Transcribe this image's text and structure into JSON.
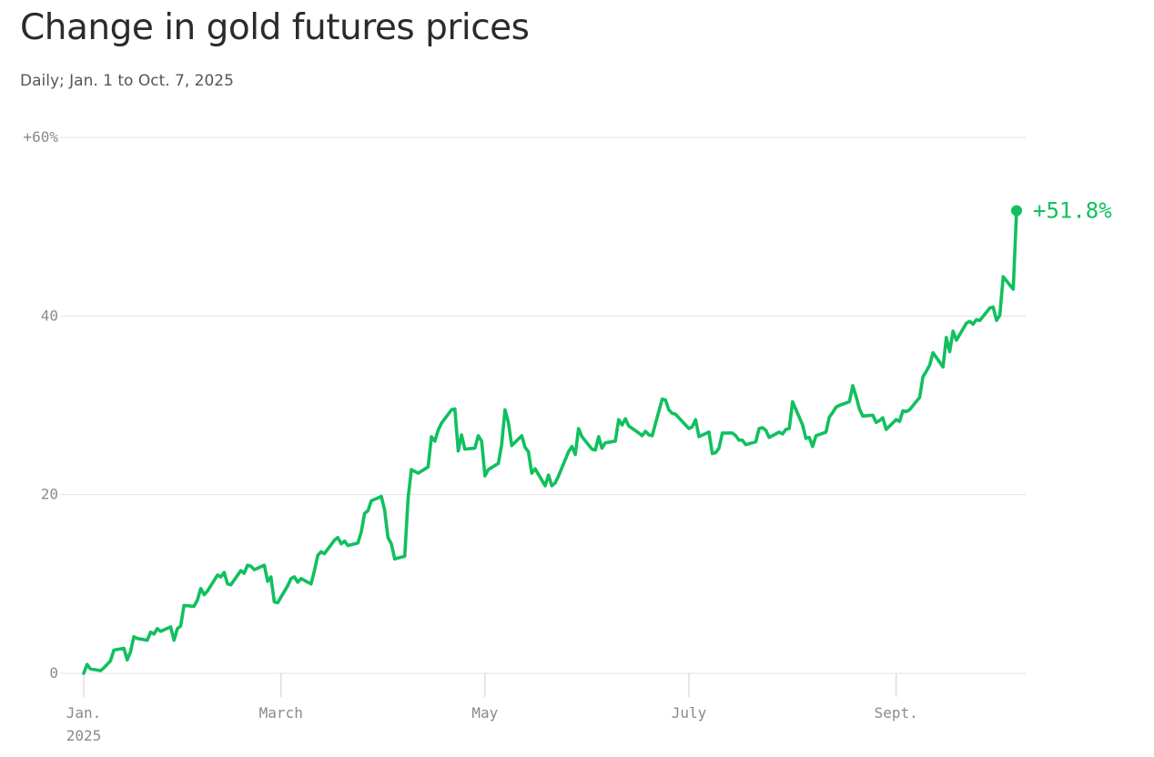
{
  "header": {
    "title": "Change in gold futures prices",
    "subtitle": "Daily; Jan. 1 to Oct. 7, 2025"
  },
  "colors": {
    "line": "#10c05e",
    "grid": "#e3e3e3",
    "axis_text": "#8a8a8a",
    "title": "#2b2b2b"
  },
  "chart_data": {
    "type": "line",
    "title": "Change in gold futures prices",
    "subtitle": "Daily; Jan. 1 to Oct. 7, 2025",
    "xlabel": "",
    "ylabel": "",
    "ylim": [
      0,
      60
    ],
    "xlim": [
      "2025-01-01",
      "2025-10-07"
    ],
    "grid": true,
    "y_ticks": [
      {
        "value": 0,
        "label": "0"
      },
      {
        "value": 20,
        "label": "20"
      },
      {
        "value": 40,
        "label": "40"
      },
      {
        "value": 60,
        "label": "+60%"
      }
    ],
    "x_ticks": [
      {
        "date": "2025-01-01",
        "label": "Jan.",
        "sublabel": "2025"
      },
      {
        "date": "2025-03-01",
        "label": "March",
        "sublabel": ""
      },
      {
        "date": "2025-05-01",
        "label": "May",
        "sublabel": ""
      },
      {
        "date": "2025-07-01",
        "label": "July",
        "sublabel": ""
      },
      {
        "date": "2025-09-01",
        "label": "Sept.",
        "sublabel": ""
      }
    ],
    "end_label": "+51.8%",
    "series": [
      {
        "points": [
          [
            "2025-01-01",
            0.0
          ],
          [
            "2025-01-02",
            1.0
          ],
          [
            "2025-01-03",
            0.5
          ],
          [
            "2025-01-06",
            0.3
          ],
          [
            "2025-01-07",
            0.6
          ],
          [
            "2025-01-08",
            1.0
          ],
          [
            "2025-01-09",
            1.4
          ],
          [
            "2025-01-10",
            2.6
          ],
          [
            "2025-01-13",
            2.8
          ],
          [
            "2025-01-14",
            1.5
          ],
          [
            "2025-01-15",
            2.4
          ],
          [
            "2025-01-16",
            4.1
          ],
          [
            "2025-01-17",
            3.9
          ],
          [
            "2025-01-20",
            3.7
          ],
          [
            "2025-01-21",
            4.6
          ],
          [
            "2025-01-22",
            4.4
          ],
          [
            "2025-01-23",
            5.0
          ],
          [
            "2025-01-24",
            4.7
          ],
          [
            "2025-01-27",
            5.2
          ],
          [
            "2025-01-28",
            3.7
          ],
          [
            "2025-01-29",
            5.0
          ],
          [
            "2025-01-30",
            5.3
          ],
          [
            "2025-01-31",
            7.6
          ],
          [
            "2025-02-03",
            7.5
          ],
          [
            "2025-02-04",
            8.2
          ],
          [
            "2025-02-05",
            9.5
          ],
          [
            "2025-02-06",
            8.8
          ],
          [
            "2025-02-07",
            9.2
          ],
          [
            "2025-02-10",
            11.0
          ],
          [
            "2025-02-11",
            10.8
          ],
          [
            "2025-02-12",
            11.3
          ],
          [
            "2025-02-13",
            10.0
          ],
          [
            "2025-02-14",
            9.9
          ],
          [
            "2025-02-17",
            11.5
          ],
          [
            "2025-02-18",
            11.2
          ],
          [
            "2025-02-19",
            12.1
          ],
          [
            "2025-02-20",
            12.0
          ],
          [
            "2025-02-21",
            11.6
          ],
          [
            "2025-02-24",
            12.1
          ],
          [
            "2025-02-25",
            10.3
          ],
          [
            "2025-02-26",
            10.8
          ],
          [
            "2025-02-27",
            8.0
          ],
          [
            "2025-02-28",
            7.9
          ],
          [
            "2025-03-03",
            9.8
          ],
          [
            "2025-03-04",
            10.6
          ],
          [
            "2025-03-05",
            10.8
          ],
          [
            "2025-03-06",
            10.2
          ],
          [
            "2025-03-07",
            10.6
          ],
          [
            "2025-03-10",
            10.0
          ],
          [
            "2025-03-11",
            11.5
          ],
          [
            "2025-03-12",
            13.2
          ],
          [
            "2025-03-13",
            13.6
          ],
          [
            "2025-03-14",
            13.4
          ],
          [
            "2025-03-17",
            14.9
          ],
          [
            "2025-03-18",
            15.2
          ],
          [
            "2025-03-19",
            14.5
          ],
          [
            "2025-03-20",
            14.8
          ],
          [
            "2025-03-21",
            14.3
          ],
          [
            "2025-03-24",
            14.6
          ],
          [
            "2025-03-25",
            15.8
          ],
          [
            "2025-03-26",
            17.9
          ],
          [
            "2025-03-27",
            18.2
          ],
          [
            "2025-03-28",
            19.3
          ],
          [
            "2025-03-31",
            19.8
          ],
          [
            "2025-04-01",
            18.3
          ],
          [
            "2025-04-02",
            15.2
          ],
          [
            "2025-04-03",
            14.5
          ],
          [
            "2025-04-04",
            12.8
          ],
          [
            "2025-04-07",
            13.1
          ],
          [
            "2025-04-08",
            19.6
          ],
          [
            "2025-04-09",
            22.8
          ],
          [
            "2025-04-10",
            22.6
          ],
          [
            "2025-04-11",
            22.4
          ],
          [
            "2025-04-14",
            23.1
          ],
          [
            "2025-04-15",
            26.5
          ],
          [
            "2025-04-16",
            26.0
          ],
          [
            "2025-04-17",
            27.2
          ],
          [
            "2025-04-18",
            28.0
          ],
          [
            "2025-04-21",
            29.5
          ],
          [
            "2025-04-22",
            29.6
          ],
          [
            "2025-04-23",
            24.9
          ],
          [
            "2025-04-24",
            26.7
          ],
          [
            "2025-04-25",
            25.1
          ],
          [
            "2025-04-28",
            25.2
          ],
          [
            "2025-04-29",
            26.6
          ],
          [
            "2025-04-30",
            26.0
          ],
          [
            "2025-05-01",
            22.1
          ],
          [
            "2025-05-02",
            22.8
          ],
          [
            "2025-05-05",
            23.5
          ],
          [
            "2025-05-06",
            25.6
          ],
          [
            "2025-05-07",
            29.5
          ],
          [
            "2025-05-08",
            28.1
          ],
          [
            "2025-05-09",
            25.5
          ],
          [
            "2025-05-12",
            26.6
          ],
          [
            "2025-05-13",
            25.3
          ],
          [
            "2025-05-14",
            24.8
          ],
          [
            "2025-05-15",
            22.4
          ],
          [
            "2025-05-16",
            22.9
          ],
          [
            "2025-05-19",
            21.0
          ],
          [
            "2025-05-20",
            22.2
          ],
          [
            "2025-05-21",
            21.0
          ],
          [
            "2025-05-22",
            21.3
          ],
          [
            "2025-05-23",
            22.1
          ],
          [
            "2025-05-26",
            24.8
          ],
          [
            "2025-05-27",
            25.4
          ],
          [
            "2025-05-28",
            24.5
          ],
          [
            "2025-05-29",
            27.4
          ],
          [
            "2025-05-30",
            26.5
          ],
          [
            "2025-06-02",
            25.1
          ],
          [
            "2025-06-03",
            25.0
          ],
          [
            "2025-06-04",
            26.5
          ],
          [
            "2025-06-05",
            25.2
          ],
          [
            "2025-06-06",
            25.8
          ],
          [
            "2025-06-09",
            26.0
          ],
          [
            "2025-06-10",
            28.4
          ],
          [
            "2025-06-11",
            27.8
          ],
          [
            "2025-06-12",
            28.5
          ],
          [
            "2025-06-13",
            27.7
          ],
          [
            "2025-06-16",
            26.9
          ],
          [
            "2025-06-17",
            26.6
          ],
          [
            "2025-06-18",
            27.1
          ],
          [
            "2025-06-19",
            26.7
          ],
          [
            "2025-06-20",
            26.6
          ],
          [
            "2025-06-23",
            30.7
          ],
          [
            "2025-06-24",
            30.6
          ],
          [
            "2025-06-25",
            29.5
          ],
          [
            "2025-06-26",
            29.1
          ],
          [
            "2025-06-27",
            29.0
          ],
          [
            "2025-06-30",
            27.8
          ],
          [
            "2025-07-01",
            27.4
          ],
          [
            "2025-07-02",
            27.6
          ],
          [
            "2025-07-03",
            28.4
          ],
          [
            "2025-07-04",
            26.5
          ],
          [
            "2025-07-07",
            27.0
          ],
          [
            "2025-07-08",
            24.6
          ],
          [
            "2025-07-09",
            24.7
          ],
          [
            "2025-07-10",
            25.2
          ],
          [
            "2025-07-11",
            26.9
          ],
          [
            "2025-07-14",
            26.9
          ],
          [
            "2025-07-15",
            26.6
          ],
          [
            "2025-07-16",
            26.1
          ],
          [
            "2025-07-17",
            26.1
          ],
          [
            "2025-07-18",
            25.6
          ],
          [
            "2025-07-21",
            25.9
          ],
          [
            "2025-07-22",
            27.4
          ],
          [
            "2025-07-23",
            27.5
          ],
          [
            "2025-07-24",
            27.2
          ],
          [
            "2025-07-25",
            26.4
          ],
          [
            "2025-07-28",
            27.0
          ],
          [
            "2025-07-29",
            26.8
          ],
          [
            "2025-07-30",
            27.3
          ],
          [
            "2025-07-31",
            27.4
          ],
          [
            "2025-08-01",
            30.4
          ],
          [
            "2025-08-04",
            27.8
          ],
          [
            "2025-08-05",
            26.3
          ],
          [
            "2025-08-06",
            26.4
          ],
          [
            "2025-08-07",
            25.4
          ],
          [
            "2025-08-08",
            26.6
          ],
          [
            "2025-08-11",
            27.0
          ],
          [
            "2025-08-12",
            28.7
          ],
          [
            "2025-08-13",
            29.2
          ],
          [
            "2025-08-14",
            29.8
          ],
          [
            "2025-08-15",
            30.0
          ],
          [
            "2025-08-18",
            30.4
          ],
          [
            "2025-08-19",
            32.2
          ],
          [
            "2025-08-20",
            31.0
          ],
          [
            "2025-08-21",
            29.6
          ],
          [
            "2025-08-22",
            28.8
          ],
          [
            "2025-08-25",
            28.9
          ],
          [
            "2025-08-26",
            28.1
          ],
          [
            "2025-08-27",
            28.3
          ],
          [
            "2025-08-28",
            28.6
          ],
          [
            "2025-08-29",
            27.3
          ],
          [
            "2025-09-01",
            28.4
          ],
          [
            "2025-09-02",
            28.2
          ],
          [
            "2025-09-03",
            29.4
          ],
          [
            "2025-09-04",
            29.3
          ],
          [
            "2025-09-05",
            29.5
          ],
          [
            "2025-09-08",
            30.9
          ],
          [
            "2025-09-09",
            33.2
          ],
          [
            "2025-09-10",
            33.8
          ],
          [
            "2025-09-11",
            34.5
          ],
          [
            "2025-09-12",
            35.9
          ],
          [
            "2025-09-15",
            34.3
          ],
          [
            "2025-09-16",
            37.6
          ],
          [
            "2025-09-17",
            36.0
          ],
          [
            "2025-09-18",
            38.3
          ],
          [
            "2025-09-19",
            37.3
          ],
          [
            "2025-09-22",
            39.2
          ],
          [
            "2025-09-23",
            39.4
          ],
          [
            "2025-09-24",
            39.1
          ],
          [
            "2025-09-25",
            39.6
          ],
          [
            "2025-09-26",
            39.5
          ],
          [
            "2025-09-29",
            40.9
          ],
          [
            "2025-09-30",
            41.0
          ],
          [
            "2025-10-01",
            39.5
          ],
          [
            "2025-10-02",
            40.1
          ],
          [
            "2025-10-03",
            44.4
          ],
          [
            "2025-10-06",
            43.0
          ],
          [
            "2025-10-07",
            51.8
          ]
        ]
      }
    ]
  }
}
